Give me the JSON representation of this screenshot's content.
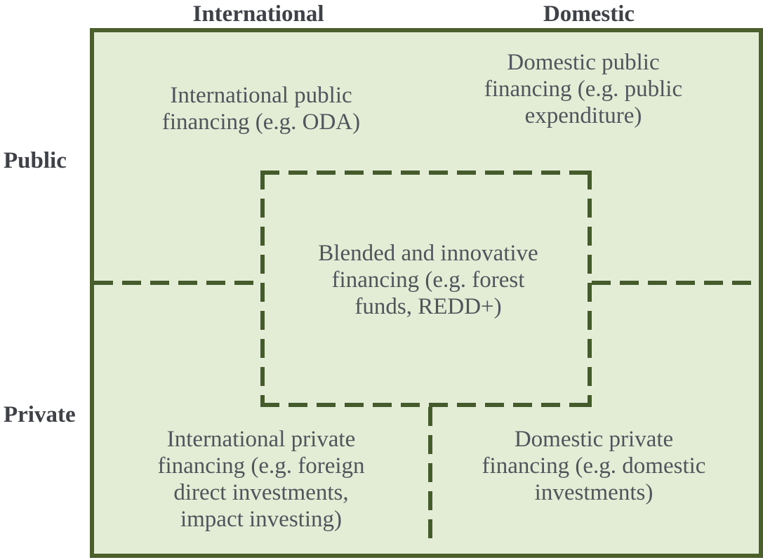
{
  "colors": {
    "page-bg": "#ffffff",
    "box-fill": "#e3ecd5",
    "box-border": "#4a5f2c",
    "dash": "#465b2b",
    "text": "#51555b",
    "label": "#3e4247"
  },
  "column_headers": {
    "international": "International",
    "domestic": "Domestic"
  },
  "row_labels": {
    "public": "Public",
    "private": "Private"
  },
  "quadrants": {
    "international_public": {
      "lines": [
        "International public",
        "financing (e.g. ODA)"
      ]
    },
    "domestic_public": {
      "lines": [
        "Domestic public",
        "financing (e.g. public",
        "expenditure)"
      ]
    },
    "international_private": {
      "lines": [
        "International private",
        "financing (e.g. foreign",
        "direct investments,",
        "impact investing)"
      ]
    },
    "domestic_private": {
      "lines": [
        "Domestic private",
        "financing (e.g. domestic",
        "investments)"
      ]
    }
  },
  "center_box": {
    "lines": [
      "Blended and innovative",
      "financing (e.g. forest",
      "funds, REDD+)"
    ]
  }
}
